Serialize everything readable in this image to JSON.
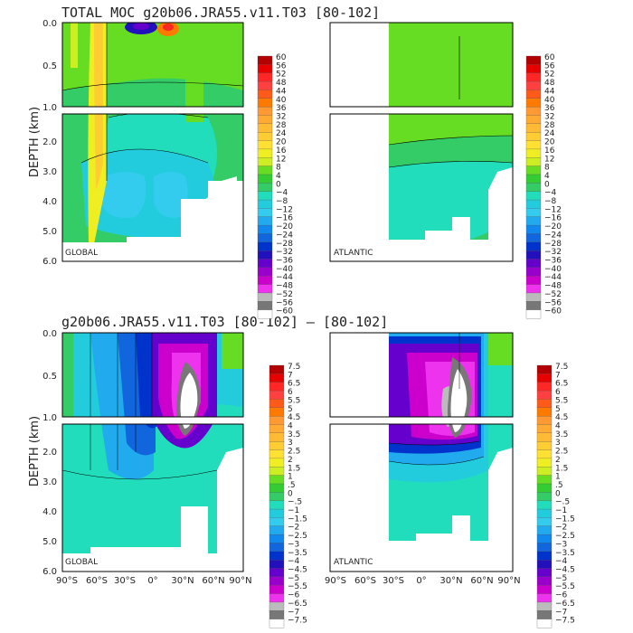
{
  "figure": {
    "top_title": "TOTAL MOC g20b06.JRA55.v11.T03 [80-102]",
    "bottom_title": "g20b06.JRA55.v11.T03 [80-102] –  [80-102]",
    "ylabel": "DEPTH (km)"
  },
  "chart_data": [
    {
      "type": "heatmap",
      "panel": "top-left",
      "region_label": "GLOBAL",
      "field": "total meridional overturning streamfunction",
      "ylabel": "DEPTH (km)",
      "yticks": [
        "0.0",
        "0.5",
        "1.0",
        "2.0",
        "3.0",
        "4.0",
        "5.0",
        "6.0"
      ],
      "ylim": [
        0,
        6.0
      ],
      "xlim": [
        -90,
        90
      ],
      "features": [
        {
          "lat": -50,
          "depth": [
            0,
            2.2
          ],
          "value": 20
        },
        {
          "lat": -10,
          "depth": [
            3.0,
            4.5
          ],
          "value": -8
        },
        {
          "lat": -5,
          "depth": [
            0,
            0.2
          ],
          "value": -40
        },
        {
          "lat": 5,
          "depth": [
            0,
            0.2
          ],
          "value": 30
        }
      ]
    },
    {
      "type": "heatmap",
      "panel": "top-right",
      "region_label": "ATLANTIC",
      "field": "total meridional overturning streamfunction",
      "xlim": [
        -90,
        90
      ],
      "ylim": [
        0,
        6.0
      ],
      "features": [
        {
          "lat": 20,
          "depth": [
            0,
            2.0
          ],
          "value": 4
        },
        {
          "lat": 20,
          "depth": [
            2.5,
            5.0
          ],
          "value": -2
        }
      ]
    },
    {
      "type": "heatmap",
      "panel": "bottom-left",
      "region_label": "GLOBAL",
      "field": "difference",
      "ylabel": "DEPTH (km)",
      "yticks": [
        "0.0",
        "0.5",
        "1.0",
        "2.0",
        "3.0",
        "4.0",
        "5.0",
        "6.0"
      ],
      "xticks": [
        "90°S",
        "60°S",
        "30°S",
        "0°",
        "30°N",
        "60°N",
        "90°N"
      ],
      "ylim": [
        0,
        6.0
      ],
      "xlim": [
        -90,
        90
      ],
      "features": [
        {
          "lat": 30,
          "depth": [
            0.1,
            1.8
          ],
          "value": -7.5
        },
        {
          "lat": -30,
          "depth": [
            0,
            2.0
          ],
          "value": -3.5
        }
      ]
    },
    {
      "type": "heatmap",
      "panel": "bottom-right",
      "region_label": "ATLANTIC",
      "field": "difference",
      "xticks": [
        "90°S",
        "60°S",
        "30°S",
        "0°",
        "30°N",
        "60°N",
        "90°N"
      ],
      "xlim": [
        -90,
        90
      ],
      "ylim": [
        0,
        6.0
      ],
      "features": [
        {
          "lat": 35,
          "depth": [
            0.1,
            1.8
          ],
          "value": -7.5
        },
        {
          "lat": 10,
          "depth": [
            0.2,
            2.0
          ],
          "value": -5.5
        }
      ]
    }
  ],
  "colorbars": {
    "top": [
      "60",
      "56",
      "52",
      "48",
      "44",
      "40",
      "36",
      "32",
      "28",
      "24",
      "20",
      "16",
      "12",
      "8",
      "4",
      "0",
      "−4",
      "−8",
      "−12",
      "−16",
      "−20",
      "−24",
      "−28",
      "−32",
      "−36",
      "−40",
      "−44",
      "−48",
      "−52",
      "−56",
      "−60"
    ],
    "bottom": [
      "7.5",
      "7",
      "6.5",
      "6",
      "5.5",
      "5",
      "4.5",
      "4",
      "3.5",
      "3",
      "2.5",
      "2",
      "1.5",
      "1",
      ".5",
      "0",
      "−.5",
      "−1",
      "−1.5",
      "−2",
      "−2.5",
      "−3",
      "−3.5",
      "−4",
      "−4.5",
      "−5",
      "−5.5",
      "−6",
      "−6.5",
      "−7",
      "−7.5"
    ],
    "colors": [
      "#b30000",
      "#e60000",
      "#ff2626",
      "#ff4040",
      "#ff5a1a",
      "#ff7a00",
      "#ff9933",
      "#ffaa33",
      "#ffbb33",
      "#ffcc33",
      "#ffe033",
      "#eeee22",
      "#ccee22",
      "#66dd22",
      "#33cc33",
      "#33cc66",
      "#22ddbb",
      "#22ccdd",
      "#33ccee",
      "#22aaee",
      "#1188ee",
      "#1166dd",
      "#0033cc",
      "#2211bb",
      "#6600cc",
      "#9900cc",
      "#cc00cc",
      "#ee33ee",
      "#bbbbbb",
      "#777777",
      "#ffffff"
    ]
  }
}
